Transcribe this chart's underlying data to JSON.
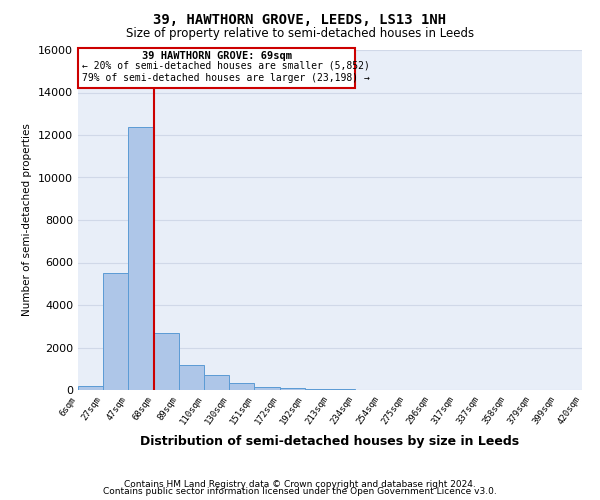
{
  "title": "39, HAWTHORN GROVE, LEEDS, LS13 1NH",
  "subtitle": "Size of property relative to semi-detached houses in Leeds",
  "xlabel": "Distribution of semi-detached houses by size in Leeds",
  "ylabel": "Number of semi-detached properties",
  "annotation_line1": "39 HAWTHORN GROVE: 69sqm",
  "annotation_line2": "← 20% of semi-detached houses are smaller (5,852)",
  "annotation_line3": "79% of semi-detached houses are larger (23,198) →",
  "footer1": "Contains HM Land Registry data © Crown copyright and database right 2024.",
  "footer2": "Contains public sector information licensed under the Open Government Licence v3.0.",
  "bin_labels": [
    "6sqm",
    "27sqm",
    "47sqm",
    "68sqm",
    "89sqm",
    "110sqm",
    "130sqm",
    "151sqm",
    "172sqm",
    "192sqm",
    "213sqm",
    "234sqm",
    "254sqm",
    "275sqm",
    "296sqm",
    "317sqm",
    "337sqm",
    "358sqm",
    "379sqm",
    "399sqm",
    "420sqm"
  ],
  "bar_heights": [
    200,
    5500,
    12400,
    2700,
    1200,
    700,
    350,
    150,
    90,
    60,
    35,
    10,
    5,
    3,
    2,
    1,
    1,
    1,
    0,
    0
  ],
  "bar_color": "#aec6e8",
  "bar_edge_color": "#5b9bd5",
  "vline_color": "#cc0000",
  "vline_bar_index": 2,
  "box_color": "#cc0000",
  "ylim": [
    0,
    16000
  ],
  "yticks": [
    0,
    2000,
    4000,
    6000,
    8000,
    10000,
    12000,
    14000,
    16000
  ],
  "grid_color": "#d0d8e8",
  "bg_color": "#e8eef8",
  "title_fontsize": 10,
  "subtitle_fontsize": 8.5
}
